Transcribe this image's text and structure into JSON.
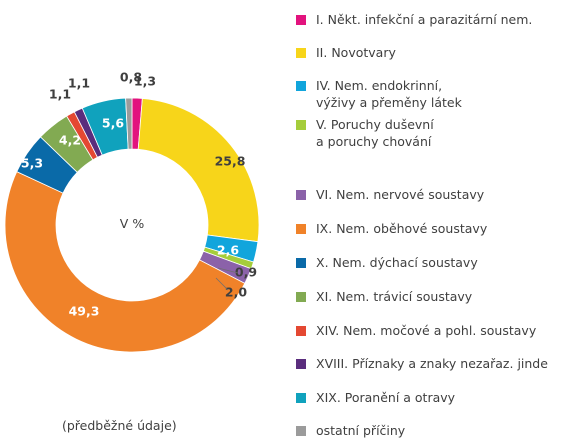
{
  "chart_data": {
    "type": "pie",
    "variant": "donut",
    "center_label": "V %",
    "note": "(předběžné údaje)",
    "slices": [
      {
        "label": "I. Někt. infekční a parazitární nem.",
        "value": 1.3,
        "value_label": "1,3",
        "color": "#e2137e"
      },
      {
        "label": "II. Novotvary",
        "value": 25.8,
        "value_label": "25,8",
        "color": "#f7d51a"
      },
      {
        "label": "IV. Nem. endokrinní,\nvýživy a přeměny látek",
        "value": 2.6,
        "value_label": "2,6",
        "color": "#11a5dc"
      },
      {
        "label": "V. Poruchy duševní\na poruchy chování",
        "value": 0.9,
        "value_label": "0,9",
        "color": "#a5cd3b"
      },
      {
        "label": "VI. Nem. nervové soustavy",
        "value": 2.0,
        "value_label": "2,0",
        "color": "#8b62a9"
      },
      {
        "label": "IX. Nem. oběhové soustavy",
        "value": 49.3,
        "value_label": "49,3",
        "color": "#f08229"
      },
      {
        "label": "X. Nem. dýchací soustavy",
        "value": 5.3,
        "value_label": "5,3",
        "color": "#0a6aa8"
      },
      {
        "label": "XI. Nem. trávicí soustavy",
        "value": 4.2,
        "value_label": "4,2",
        "color": "#82aa52"
      },
      {
        "label": "XIV. Nem. močové a pohl. soustavy",
        "value": 1.1,
        "value_label": "1,1",
        "color": "#e44832"
      },
      {
        "label": "XVIII. Příznaky a znaky nezařaz. jinde",
        "value": 1.1,
        "value_label": "1,1",
        "color": "#5a2d7d"
      },
      {
        "label": "XIX. Poranění a otravy",
        "value": 5.6,
        "value_label": "5,6",
        "color": "#10a2bd"
      },
      {
        "label": "ostatní příčiny",
        "value": 0.8,
        "value_label": "0,8",
        "color": "#9b9b9b"
      }
    ]
  }
}
